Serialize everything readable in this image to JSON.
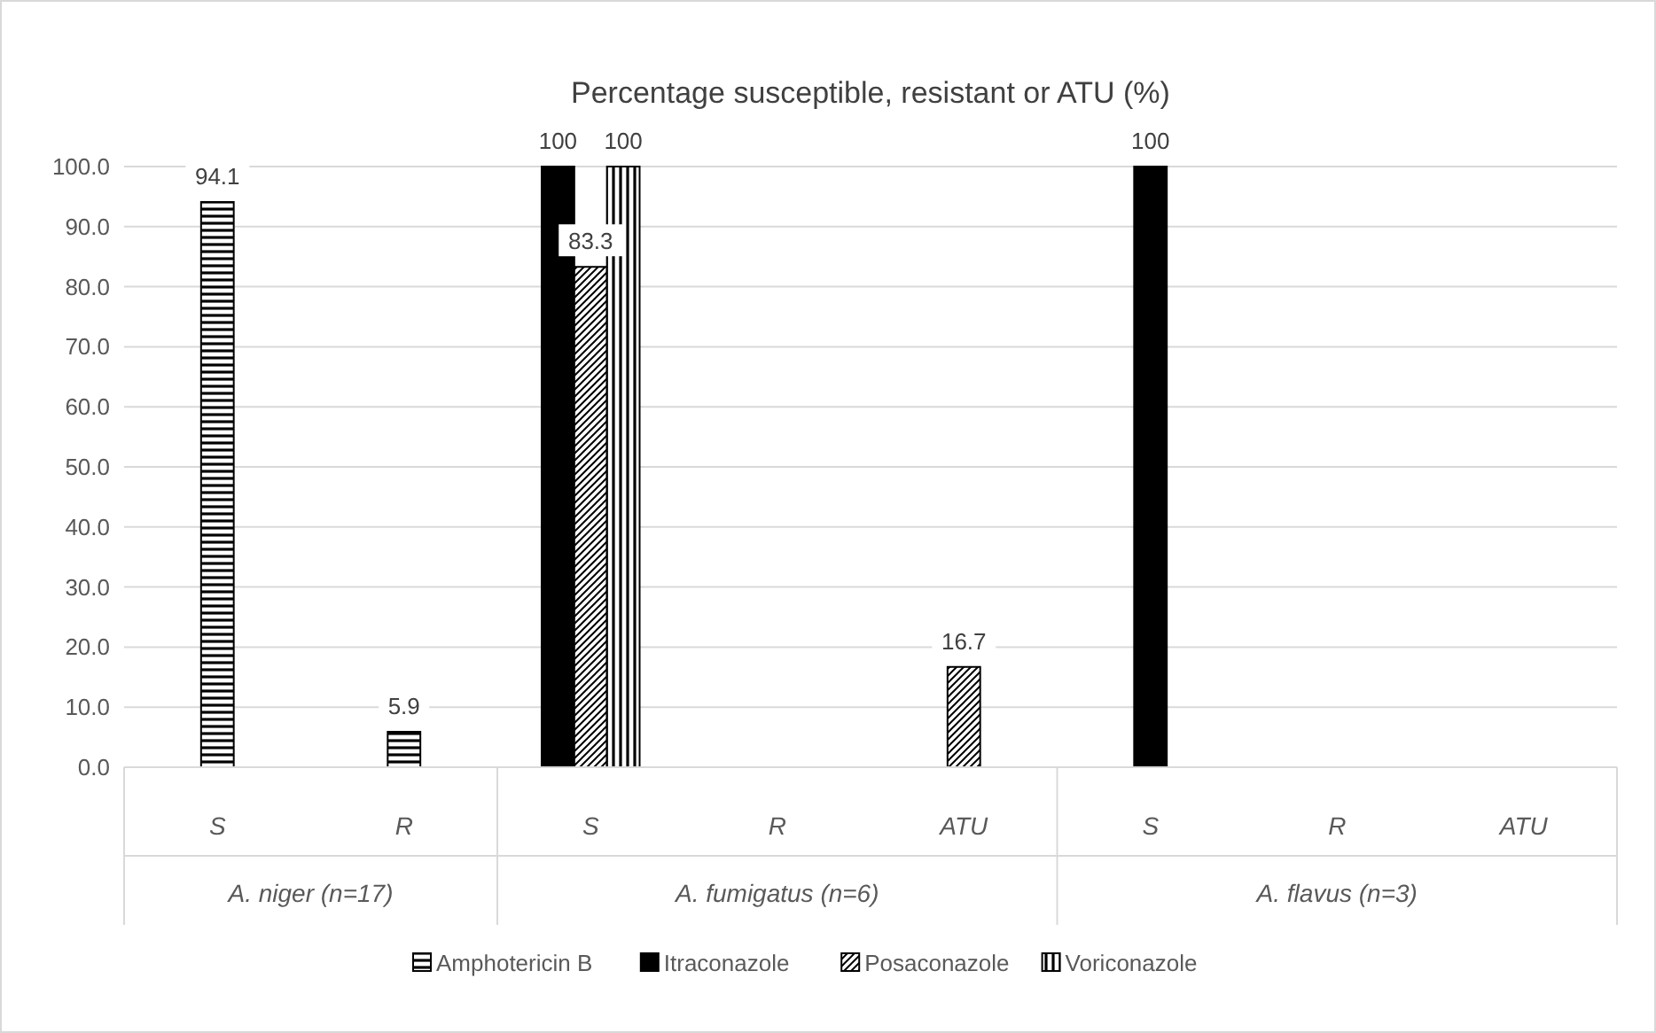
{
  "chart_data": {
    "type": "bar",
    "title": "Percentage susceptible, resistant or ATU (%)",
    "categories": [
      "S",
      "R",
      "S",
      "R",
      "ATU",
      "S",
      "R",
      "ATU"
    ],
    "annotations": [
      "A. niger (n=17)",
      "A. fumigatus (n=6)",
      "A. flavus (n=3)"
    ],
    "series": [
      {
        "name": "Amphotericin B",
        "color": "#000000",
        "values": [
          94.1,
          5.9,
          null,
          null,
          null,
          null,
          null,
          null
        ]
      },
      {
        "name": "Itraconazole",
        "color": "#000000",
        "values": [
          null,
          null,
          100,
          null,
          null,
          100,
          null,
          null
        ]
      },
      {
        "name": "Posaconazole",
        "color": "#000000",
        "values": [
          null,
          null,
          83.3,
          null,
          16.7,
          null,
          null,
          null
        ]
      },
      {
        "name": "Voriconazole",
        "color": "#000000",
        "values": [
          null,
          null,
          100,
          null,
          null,
          null,
          null,
          null
        ]
      }
    ],
    "ylim": [
      0,
      100
    ],
    "yticks": [
      {
        "value": 0,
        "label": "0.0"
      },
      {
        "value": 10,
        "label": "10.0"
      },
      {
        "value": 20,
        "label": "20.0"
      },
      {
        "value": 30,
        "label": "30.0"
      },
      {
        "value": 40,
        "label": "40.0"
      },
      {
        "value": 50,
        "label": "50.0"
      },
      {
        "value": 60,
        "label": "60.0"
      },
      {
        "value": 70,
        "label": "70.0"
      },
      {
        "value": 80,
        "label": "80.0"
      },
      {
        "value": 90,
        "label": "90.0"
      },
      {
        "value": 100,
        "label": "100.0"
      }
    ],
    "grid": "y",
    "legend": "bottom",
    "data_labels": true
  }
}
